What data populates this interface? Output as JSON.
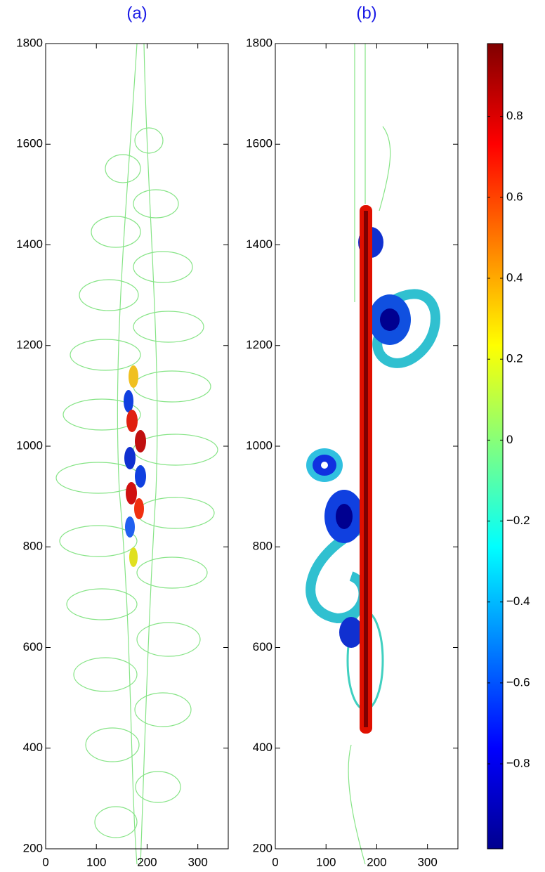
{
  "chart_data": [
    {
      "type": "contour",
      "title": "(a)",
      "xlim": [
        0,
        360
      ],
      "xticks": [
        0,
        100,
        200,
        300
      ],
      "ylim": [
        200,
        1800
      ],
      "yticks": [
        200,
        400,
        600,
        800,
        1000,
        1200,
        1400,
        1600,
        1800
      ]
    },
    {
      "type": "contour",
      "title": "(b)",
      "xlim": [
        0,
        360
      ],
      "xticks": [
        0,
        100,
        200,
        300
      ],
      "ylim": [
        200,
        1800
      ],
      "yticks": [
        200,
        400,
        600,
        800,
        1000,
        1200,
        1400,
        1600,
        1800
      ]
    }
  ],
  "colorbar": {
    "clim": [
      -1.01,
      0.98
    ],
    "colormap": "jet",
    "ticks": [
      {
        "value": -0.8,
        "label": "−0.8"
      },
      {
        "value": -0.6,
        "label": "−0.6"
      },
      {
        "value": -0.4,
        "label": "−0.4"
      },
      {
        "value": -0.2,
        "label": "−0.2"
      },
      0,
      0.2,
      0.4,
      0.6,
      0.8
    ]
  }
}
